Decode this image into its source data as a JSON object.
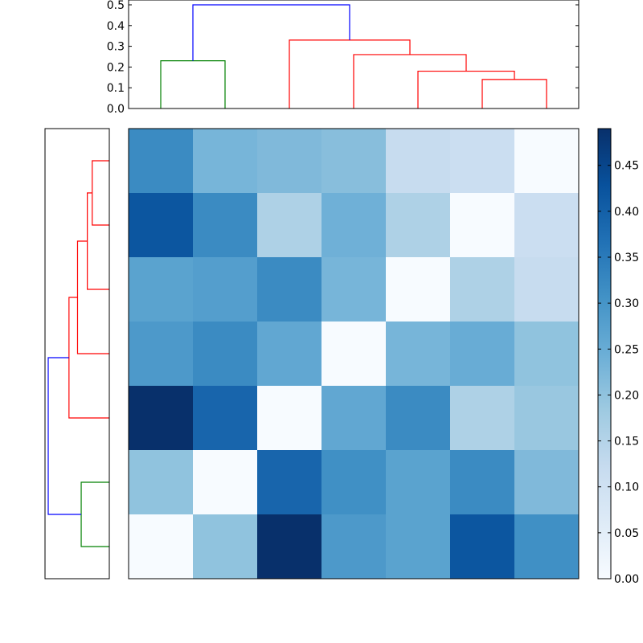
{
  "chart_data": [
    {
      "type": "dendrogram",
      "orientation": "top",
      "ylim": [
        0,
        0.5
      ],
      "yticks": [
        "0.0",
        "0.1",
        "0.2",
        "0.3",
        "0.4",
        "0.5"
      ],
      "yticks_values": [
        0,
        0.1,
        0.2,
        0.3,
        0.4,
        0.5
      ],
      "xticks": [],
      "leaf_count": 7,
      "links": [
        {
          "left": 0.5,
          "right": 1.5,
          "h_left": 0,
          "h_right": 0,
          "height": 0.23,
          "color": "#008000"
        },
        {
          "left": 5.5,
          "right": 6.5,
          "h_left": 0,
          "h_right": 0,
          "height": 0.14,
          "color": "#ff0000"
        },
        {
          "left": 4.5,
          "right": 6.0,
          "h_left": 0,
          "h_right": 0.14,
          "height": 0.18,
          "color": "#ff0000"
        },
        {
          "left": 3.5,
          "right": 5.25,
          "h_left": 0,
          "h_right": 0.18,
          "height": 0.26,
          "color": "#ff0000"
        },
        {
          "left": 2.5,
          "right": 4.375,
          "h_left": 0,
          "h_right": 0.26,
          "height": 0.33,
          "color": "#ff0000"
        },
        {
          "left": 1.0,
          "right": 3.4375,
          "h_left": 0.23,
          "h_right": 0.33,
          "height": 0.5,
          "color": "#0000ff"
        }
      ]
    },
    {
      "type": "dendrogram",
      "orientation": "left",
      "xlim": [
        0.5,
        0
      ],
      "xticks": [],
      "yticks": [],
      "leaf_count": 7,
      "links": [
        {
          "left": 0.5,
          "right": 1.5,
          "h_left": 0,
          "h_right": 0,
          "height": 0.23,
          "color": "#008000"
        },
        {
          "left": 5.5,
          "right": 6.5,
          "h_left": 0,
          "h_right": 0,
          "height": 0.14,
          "color": "#ff0000"
        },
        {
          "left": 4.5,
          "right": 6.0,
          "h_left": 0,
          "h_right": 0.14,
          "height": 0.18,
          "color": "#ff0000"
        },
        {
          "left": 3.5,
          "right": 5.25,
          "h_left": 0,
          "h_right": 0.18,
          "height": 0.26,
          "color": "#ff0000"
        },
        {
          "left": 2.5,
          "right": 4.375,
          "h_left": 0,
          "h_right": 0.26,
          "height": 0.33,
          "color": "#ff0000"
        },
        {
          "left": 1.0,
          "right": 3.4375,
          "h_left": 0.23,
          "h_right": 0.33,
          "height": 0.5,
          "color": "#0000ff"
        }
      ]
    },
    {
      "type": "heatmap",
      "rows": 7,
      "cols": 7,
      "xticks": [],
      "yticks": [],
      "colormap": "Blues",
      "colormap_stops": [
        "#f7fbff",
        "#deebf7",
        "#c6dbef",
        "#9ecae1",
        "#6baed6",
        "#4292c6",
        "#2171b5",
        "#08519c",
        "#08306b"
      ],
      "vmin": 0,
      "vmax": 0.49,
      "matrix": [
        [
          0.32,
          0.23,
          0.22,
          0.21,
          0.12,
          0.11,
          0.0
        ],
        [
          0.42,
          0.32,
          0.16,
          0.24,
          0.16,
          0.0,
          0.11
        ],
        [
          0.27,
          0.28,
          0.32,
          0.23,
          0.0,
          0.16,
          0.12
        ],
        [
          0.29,
          0.32,
          0.26,
          0.0,
          0.23,
          0.25,
          0.2
        ],
        [
          0.49,
          0.39,
          0.0,
          0.26,
          0.32,
          0.16,
          0.19
        ],
        [
          0.2,
          0.0,
          0.39,
          0.31,
          0.27,
          0.32,
          0.22
        ],
        [
          0.0,
          0.2,
          0.49,
          0.29,
          0.27,
          0.42,
          0.31
        ]
      ]
    },
    {
      "type": "colorbar",
      "vmin": 0,
      "vmax": 0.49,
      "ticks": [
        "0.00",
        "0.05",
        "0.10",
        "0.15",
        "0.20",
        "0.25",
        "0.30",
        "0.35",
        "0.40",
        "0.45"
      ],
      "tick_values": [
        0,
        0.05,
        0.1,
        0.15,
        0.2,
        0.25,
        0.3,
        0.35,
        0.4,
        0.45
      ]
    }
  ]
}
